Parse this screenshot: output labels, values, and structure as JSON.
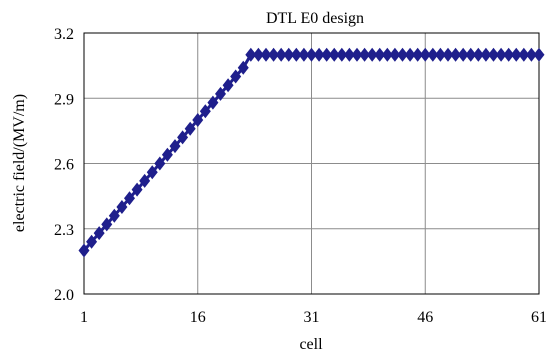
{
  "chart_data": {
    "type": "line",
    "title": "DTL E0 design",
    "xlabel": "cell",
    "ylabel": "electric field/(MV/m)",
    "xlim": [
      1,
      61
    ],
    "ylim": [
      2.0,
      3.2
    ],
    "x_ticks": [
      1,
      16,
      31,
      46,
      61
    ],
    "y_ticks": [
      2.0,
      2.3,
      2.6,
      2.9,
      3.2
    ],
    "x_tick_labels": [
      "1",
      "16",
      "31",
      "46",
      "61"
    ],
    "y_tick_labels": [
      "2.0",
      "2.3",
      "2.6",
      "2.9",
      "3.2"
    ],
    "grid": true,
    "legend": "none",
    "marker": "diamond",
    "series_color": "#1f1f8c",
    "series": [
      {
        "x": [
          1,
          2,
          3,
          4,
          5,
          6,
          7,
          8,
          9,
          10,
          11,
          12,
          13,
          14,
          15,
          16,
          17,
          18,
          19,
          20,
          21,
          22,
          23,
          24,
          25,
          26,
          27,
          28,
          29,
          30,
          31,
          32,
          33,
          34,
          35,
          36,
          37,
          38,
          39,
          40,
          41,
          42,
          43,
          44,
          45,
          46,
          47,
          48,
          49,
          50,
          51,
          52,
          53,
          54,
          55,
          56,
          57,
          58,
          59,
          60,
          61
        ],
        "y": [
          2.2,
          2.24,
          2.28,
          2.32,
          2.36,
          2.4,
          2.44,
          2.48,
          2.52,
          2.56,
          2.6,
          2.64,
          2.68,
          2.72,
          2.76,
          2.8,
          2.84,
          2.88,
          2.92,
          2.96,
          3.0,
          3.04,
          3.1,
          3.1,
          3.1,
          3.1,
          3.1,
          3.1,
          3.1,
          3.1,
          3.1,
          3.1,
          3.1,
          3.1,
          3.1,
          3.1,
          3.1,
          3.1,
          3.1,
          3.1,
          3.1,
          3.1,
          3.1,
          3.1,
          3.1,
          3.1,
          3.1,
          3.1,
          3.1,
          3.1,
          3.1,
          3.1,
          3.1,
          3.1,
          3.1,
          3.1,
          3.1,
          3.1,
          3.1,
          3.1,
          3.1
        ]
      }
    ]
  }
}
